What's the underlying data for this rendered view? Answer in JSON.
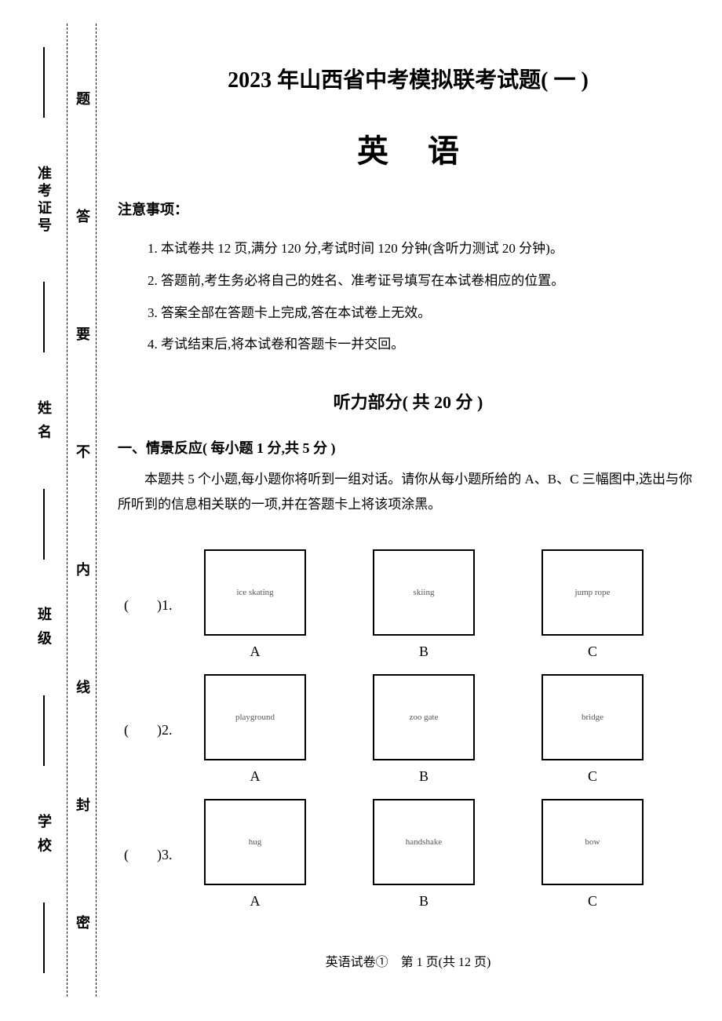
{
  "margin": {
    "blanks": [
      {
        "label": "准考证号"
      },
      {
        "label": "姓 名"
      },
      {
        "label": "班 级"
      },
      {
        "label": "学 校"
      }
    ],
    "warning_chars": [
      "题",
      "答",
      "要",
      "不",
      "内",
      "线",
      "封",
      "密"
    ]
  },
  "header": {
    "title": "2023 年山西省中考模拟联考试题( 一 )",
    "subject": "英语"
  },
  "notice": {
    "heading": "注意事项：",
    "items": [
      "1. 本试卷共 12 页,满分 120 分,考试时间 120 分钟(含听力测试 20 分钟)。",
      "2. 答题前,考生务必将自己的姓名、准考证号填写在本试卷相应的位置。",
      "3. 答案全部在答题卡上完成,答在本试卷上无效。",
      "4. 考试结束后,将本试卷和答题卡一并交回。"
    ]
  },
  "listening": {
    "title": "听力部分( 共 20 分 )"
  },
  "section1": {
    "heading": "一、情景反应( 每小题 1 分,共 5 分 )",
    "desc": "本题共 5 个小题,每小题你将听到一组对话。请你从每小题所给的 A、B、C 三幅图中,选出与你所听到的信息相关联的一项,并在答题卡上将该项涂黑。"
  },
  "questions": [
    {
      "num": "(　　)1.",
      "opts": [
        {
          "letter": "A",
          "desc": "ice skating"
        },
        {
          "letter": "B",
          "desc": "skiing"
        },
        {
          "letter": "C",
          "desc": "jump rope"
        }
      ]
    },
    {
      "num": "(　　)2.",
      "opts": [
        {
          "letter": "A",
          "desc": "playground"
        },
        {
          "letter": "B",
          "desc": "zoo gate"
        },
        {
          "letter": "C",
          "desc": "bridge"
        }
      ]
    },
    {
      "num": "(　　)3.",
      "opts": [
        {
          "letter": "A",
          "desc": "hug"
        },
        {
          "letter": "B",
          "desc": "handshake"
        },
        {
          "letter": "C",
          "desc": "bow"
        }
      ]
    }
  ],
  "footer": "英语试卷①　第 1 页(共 12 页)",
  "colors": {
    "text": "#000000",
    "bg": "#ffffff",
    "placeholder": "#555555"
  }
}
